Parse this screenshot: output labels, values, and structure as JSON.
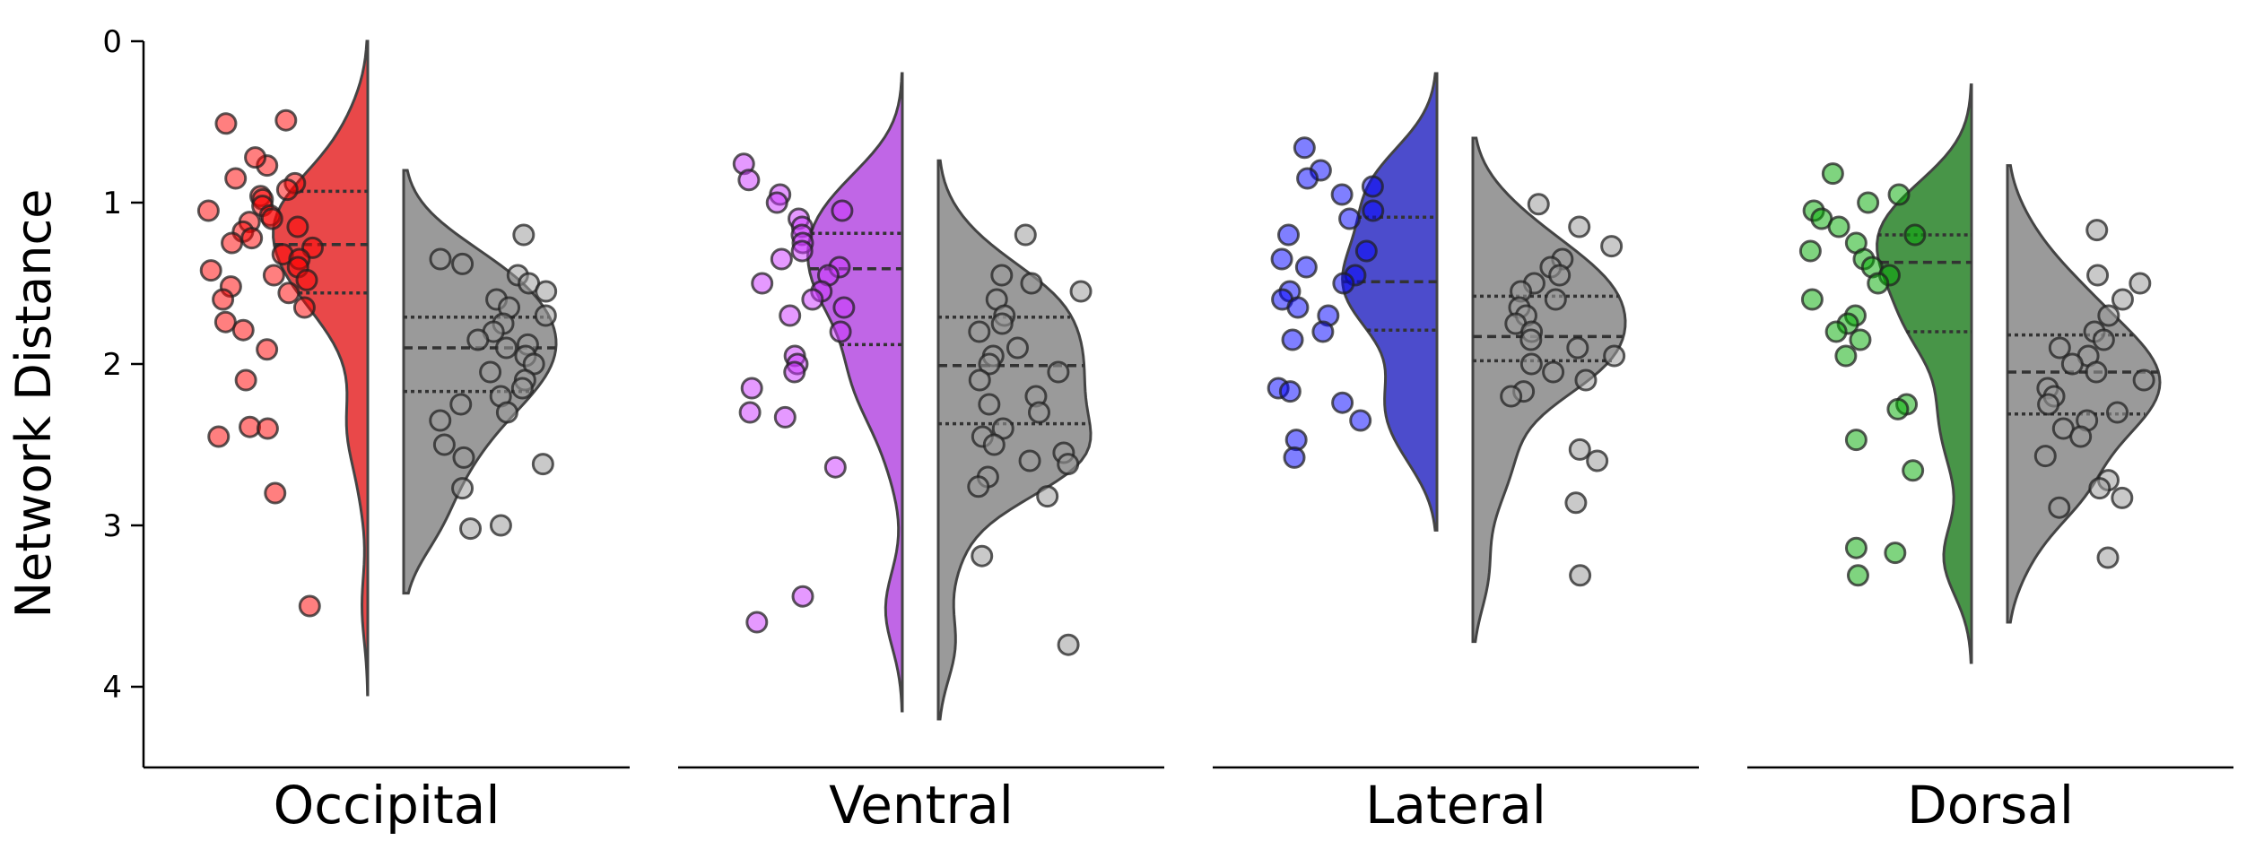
{
  "chart_data": {
    "type": "violin",
    "ylabel": "Network Distance",
    "yticks": [
      0,
      1,
      2,
      3,
      4
    ],
    "ylim": [
      4.5,
      0
    ],
    "y_inverted": true,
    "grid": false,
    "categories": [
      {
        "label": "Occipital",
        "color": "#e31a1c",
        "point_color": "#ff0000",
        "colored": {
          "quartiles": [
            0.93,
            1.26,
            1.56
          ],
          "range": [
            0.0,
            4.05
          ],
          "points": [
            0.51,
            0.49,
            0.77,
            0.72,
            0.85,
            0.88,
            0.92,
            0.96,
            0.98,
            1.02,
            1.05,
            1.08,
            1.1,
            1.12,
            1.15,
            1.18,
            1.22,
            1.25,
            1.28,
            1.32,
            1.35,
            1.4,
            1.42,
            1.45,
            1.48,
            1.52,
            1.56,
            1.6,
            1.65,
            1.74,
            1.79,
            1.91,
            2.1,
            2.39,
            2.4,
            2.45,
            2.8,
            3.5
          ]
        },
        "gray": {
          "quartiles": [
            1.71,
            1.9,
            2.17
          ],
          "range": [
            0.8,
            3.42
          ],
          "points": [
            1.2,
            1.35,
            1.38,
            1.45,
            1.5,
            1.55,
            1.6,
            1.65,
            1.7,
            1.75,
            1.8,
            1.85,
            1.88,
            1.9,
            1.95,
            2.0,
            2.05,
            2.1,
            2.15,
            2.2,
            2.25,
            2.3,
            2.35,
            2.5,
            2.58,
            2.62,
            2.77,
            3.0,
            3.02
          ]
        }
      },
      {
        "label": "Ventral",
        "color": "#b040e0",
        "point_color": "#cc33ff",
        "colored": {
          "quartiles": [
            1.19,
            1.41,
            1.88
          ],
          "range": [
            0.2,
            4.15
          ],
          "points": [
            0.76,
            0.86,
            0.95,
            1.0,
            1.05,
            1.1,
            1.15,
            1.2,
            1.25,
            1.3,
            1.35,
            1.4,
            1.45,
            1.5,
            1.55,
            1.6,
            1.65,
            1.7,
            1.8,
            1.95,
            2.0,
            2.05,
            2.15,
            2.3,
            2.33,
            2.64,
            3.44,
            3.6
          ]
        },
        "gray": {
          "quartiles": [
            1.71,
            2.01,
            2.37
          ],
          "range": [
            0.74,
            4.2
          ],
          "points": [
            1.2,
            1.45,
            1.5,
            1.55,
            1.6,
            1.7,
            1.75,
            1.8,
            1.9,
            1.95,
            2.0,
            2.05,
            2.1,
            2.2,
            2.25,
            2.3,
            2.4,
            2.45,
            2.5,
            2.55,
            2.6,
            2.62,
            2.7,
            2.76,
            2.82,
            3.19,
            3.74
          ]
        }
      },
      {
        "label": "Lateral",
        "color": "#1f1fbf",
        "point_color": "#0000ff",
        "colored": {
          "quartiles": [
            1.09,
            1.49,
            1.79
          ],
          "range": [
            0.2,
            3.03
          ],
          "points": [
            0.66,
            0.8,
            0.85,
            0.9,
            0.95,
            1.05,
            1.1,
            1.2,
            1.3,
            1.35,
            1.4,
            1.45,
            1.5,
            1.55,
            1.6,
            1.65,
            1.7,
            1.8,
            1.85,
            2.15,
            2.17,
            2.24,
            2.35,
            2.47,
            2.58
          ]
        },
        "gray": {
          "quartiles": [
            1.58,
            1.83,
            1.98
          ],
          "range": [
            0.6,
            3.72
          ],
          "points": [
            1.01,
            1.15,
            1.27,
            1.35,
            1.4,
            1.45,
            1.5,
            1.55,
            1.6,
            1.65,
            1.7,
            1.75,
            1.8,
            1.85,
            1.9,
            1.95,
            2.0,
            2.05,
            2.1,
            2.17,
            2.2,
            2.53,
            2.6,
            2.86,
            3.31
          ]
        }
      },
      {
        "label": "Dorsal",
        "color": "#1a7a1a",
        "point_color": "#00aa00",
        "colored": {
          "quartiles": [
            1.2,
            1.37,
            1.8
          ],
          "range": [
            0.27,
            3.85
          ],
          "points": [
            0.82,
            0.95,
            1.0,
            1.05,
            1.1,
            1.15,
            1.2,
            1.25,
            1.3,
            1.35,
            1.4,
            1.45,
            1.5,
            1.6,
            1.7,
            1.75,
            1.8,
            1.85,
            1.95,
            2.25,
            2.28,
            2.47,
            2.66,
            3.14,
            3.17,
            3.31
          ]
        },
        "gray": {
          "quartiles": [
            1.82,
            2.05,
            2.31
          ],
          "range": [
            0.77,
            3.6
          ],
          "points": [
            1.17,
            1.45,
            1.5,
            1.6,
            1.7,
            1.8,
            1.85,
            1.9,
            1.95,
            2.0,
            2.05,
            2.1,
            2.15,
            2.2,
            2.25,
            2.3,
            2.35,
            2.4,
            2.45,
            2.57,
            2.72,
            2.77,
            2.83,
            2.89,
            3.2
          ]
        }
      }
    ]
  }
}
